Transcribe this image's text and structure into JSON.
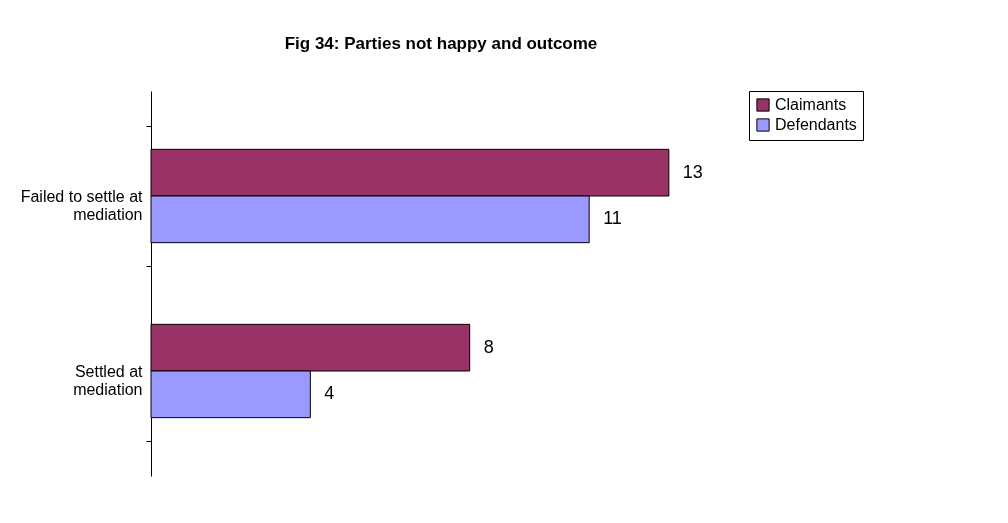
{
  "chart_data": {
    "type": "bar",
    "orientation": "horizontal",
    "title": "Fig 34: Parties not happy and outcome",
    "categories": [
      "Failed to settle at mediation",
      "Settled at mediation"
    ],
    "series": [
      {
        "name": "Claimants",
        "color": "#993366",
        "values": [
          13,
          8
        ]
      },
      {
        "name": "Defendants",
        "color": "#9999ff",
        "values": [
          11,
          4
        ]
      }
    ],
    "data_labels": true,
    "legend": "right"
  }
}
